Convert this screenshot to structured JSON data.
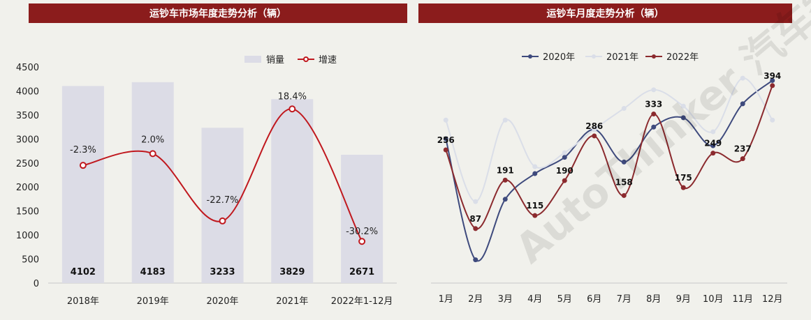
{
  "watermark": "AutoThinker 汽车智库平台",
  "chart_data": [
    {
      "type": "bar",
      "title": "运钞车市场年度走势分析（辆）",
      "categories": [
        "2018年",
        "2019年",
        "2020年",
        "2021年",
        "2022年1-12月"
      ],
      "series": [
        {
          "name": "销量",
          "type": "bar",
          "values": [
            4102,
            4183,
            3233,
            3829,
            2671
          ],
          "labels": [
            "4102",
            "4183",
            "3233",
            "3829",
            "2671"
          ]
        },
        {
          "name": "增速",
          "type": "line",
          "values": [
            -2.3,
            2.0,
            -22.7,
            18.4,
            -30.2
          ],
          "labels": [
            "-2.3%",
            "2.0%",
            "-22.7%",
            "18.4%",
            "-30.2%"
          ]
        }
      ],
      "ylim": [
        0,
        4500
      ],
      "yticks": [
        "0",
        "500",
        "1000",
        "1500",
        "2000",
        "2500",
        "3000",
        "3500",
        "4000",
        "4500"
      ],
      "colors": {
        "bar": "#dcdce6",
        "line": "#c0181e"
      },
      "legend": "top",
      "grid": false
    },
    {
      "type": "line",
      "title": "运钞车月度走势分析（辆）",
      "categories": [
        "1月",
        "2月",
        "3月",
        "4月",
        "5月",
        "6月",
        "7月",
        "8月",
        "9月",
        "10月",
        "11月",
        "12月"
      ],
      "series": [
        {
          "name": "2020年",
          "color": "#3e4a7d",
          "values": [
            280,
            20,
            150,
            205,
            240,
            300,
            230,
            305,
            325,
            265,
            355,
            405
          ]
        },
        {
          "name": "2021年",
          "color": "#dadee8",
          "values": [
            320,
            145,
            320,
            220,
            250,
            300,
            345,
            385,
            350,
            295,
            410,
            320
          ]
        },
        {
          "name": "2022年",
          "color": "#8b2a2e",
          "values": [
            256,
            87,
            191,
            115,
            190,
            286,
            158,
            333,
            175,
            249,
            237,
            394
          ],
          "labels": [
            "256",
            "87",
            "191",
            "115",
            "190",
            "286",
            "158",
            "333",
            "175",
            "249",
            "237",
            "394"
          ]
        }
      ],
      "legend": "top",
      "grid": false
    }
  ]
}
